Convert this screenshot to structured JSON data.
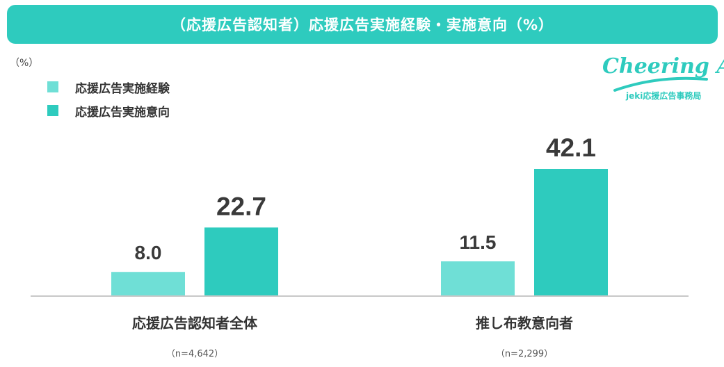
{
  "header": {
    "title": "（応援広告認知者）応援広告実施経験・実施意向（%）"
  },
  "unit_label": "（%）",
  "logo": {
    "wordmark": "Cheering AD",
    "subtitle": "jeki応援広告事務局"
  },
  "colors": {
    "series1": "#6fdfd6",
    "series2": "#2ecbbe",
    "banner": "#2ecbbe",
    "axis": "#c8c8c8",
    "text": "#3a3a3a"
  },
  "chart_data": {
    "type": "bar",
    "title": "（応援広告認知者）応援広告実施経験・実施意向（%）",
    "categories": [
      "応援広告認知者全体",
      "推し布教意向者"
    ],
    "sample_sizes": [
      "（n=4,642）",
      "（n=2,299）"
    ],
    "series": [
      {
        "name": "応援広告実施経験",
        "values": [
          8.0,
          11.5
        ]
      },
      {
        "name": "応援広告実施意向",
        "values": [
          22.7,
          42.1
        ]
      }
    ],
    "ylim": [
      0,
      42.1
    ],
    "grid": false,
    "legend_position": "top-left",
    "data_labels": true
  }
}
